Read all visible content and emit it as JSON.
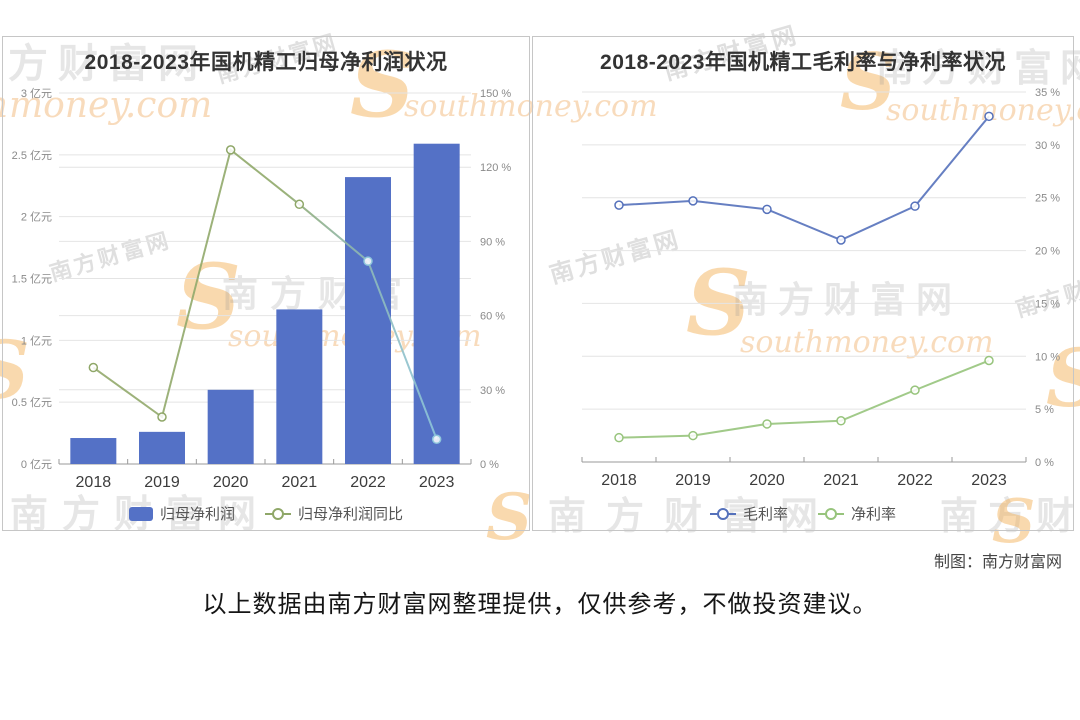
{
  "watermarks": {
    "site_cn": "南方财富网",
    "site_en": "southmoney.com",
    "logo_letter": "S"
  },
  "credit": "制图：南方财富网",
  "disclaimer": "以上数据由南方财富网整理提供，仅供参考，不做投资建议。",
  "chart_data": [
    {
      "type": "bar",
      "title": "2018-2023年国机精工归母净利润状况",
      "categories": [
        "2018",
        "2019",
        "2020",
        "2021",
        "2022",
        "2023"
      ],
      "series": [
        {
          "name": "归母净利润",
          "chart_type": "bar",
          "axis": "left",
          "unit": "亿元",
          "color": "#5471c6",
          "values": [
            0.21,
            0.26,
            0.6,
            1.25,
            2.32,
            2.59
          ]
        },
        {
          "name": "归母净利润同比",
          "chart_type": "line",
          "axis": "right",
          "unit": "%",
          "color": "#8fa768",
          "gradient": [
            [
              0,
              "#93a96c"
            ],
            [
              0.55,
              "#90a96a"
            ],
            [
              0.78,
              "#8fb9b4"
            ],
            [
              1,
              "#8ec6db"
            ]
          ],
          "marker_split": 4,
          "marker_color2": "#8ec6db",
          "values": [
            39,
            19,
            127,
            105,
            82,
            10
          ]
        }
      ],
      "left_axis": {
        "min": 0,
        "max": 3,
        "step": 0.5,
        "suffix": " 亿元"
      },
      "right_axis": {
        "min": 0,
        "max": 150,
        "step": 30,
        "suffix": " %"
      },
      "grid": true,
      "legend_position": "bottom",
      "xlabel": "",
      "ylabel": ""
    },
    {
      "type": "line",
      "title": "2018-2023年国机精工毛利率与净利率状况",
      "categories": [
        "2018",
        "2019",
        "2020",
        "2021",
        "2022",
        "2023"
      ],
      "series": [
        {
          "name": "毛利率",
          "chart_type": "line",
          "axis": "right",
          "unit": "%",
          "color": "#5571bb",
          "values": [
            24.3,
            24.7,
            23.9,
            21.0,
            24.2,
            32.7
          ]
        },
        {
          "name": "净利率",
          "chart_type": "line",
          "axis": "right",
          "unit": "%",
          "color": "#97c47c",
          "values": [
            2.3,
            2.5,
            3.6,
            3.9,
            6.8,
            9.6
          ]
        }
      ],
      "right_axis": {
        "min": 0,
        "max": 35,
        "step": 5,
        "suffix": " %"
      },
      "grid": true,
      "legend_position": "bottom",
      "xlabel": "",
      "ylabel": ""
    }
  ]
}
